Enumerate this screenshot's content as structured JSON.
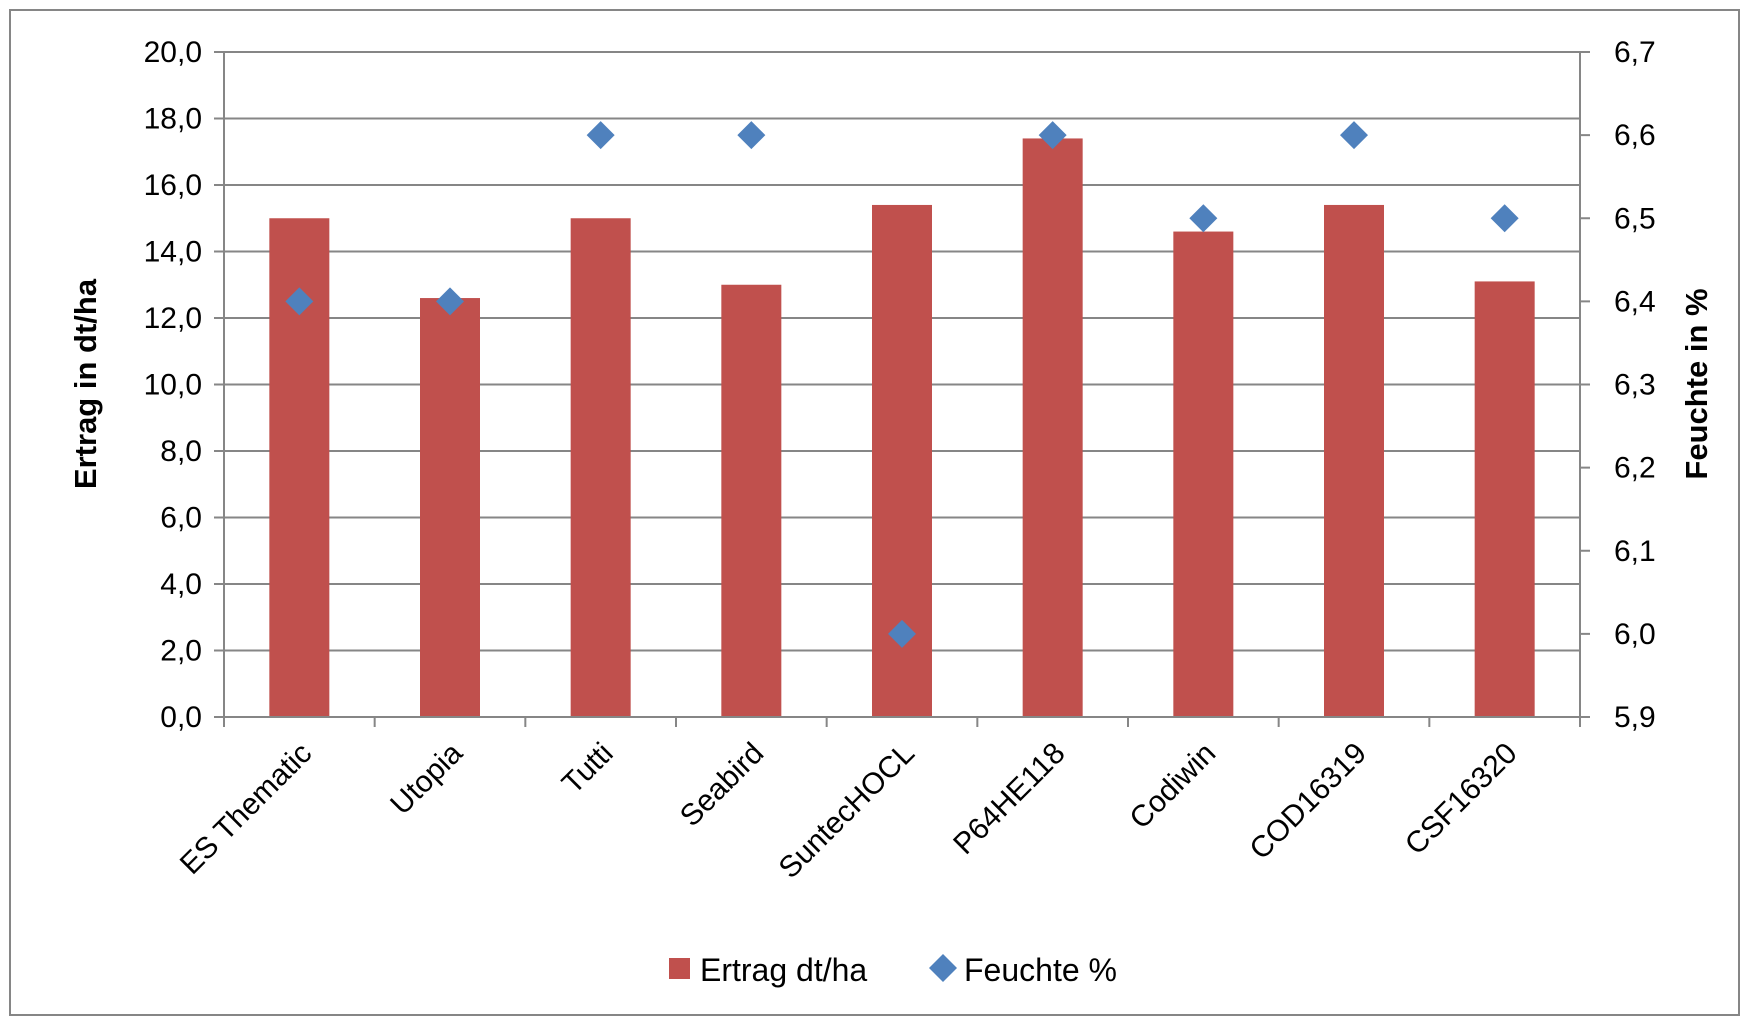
{
  "chart_data": {
    "type": "bar",
    "categories": [
      "ES Thematic",
      "Utopia",
      "Tutti",
      "Seabird",
      "SuntecHOCL",
      "P64HE118",
      "Codiwin",
      "COD16319",
      "CSF16320"
    ],
    "series": [
      {
        "name": "Ertrag dt/ha",
        "type": "bar",
        "axis": "left",
        "color": "#C0504D",
        "values": [
          15.0,
          12.6,
          15.0,
          13.0,
          15.4,
          17.4,
          14.6,
          15.4,
          13.1
        ]
      },
      {
        "name": "Feuchte %",
        "type": "scatter",
        "marker": "diamond",
        "axis": "right",
        "color": "#4F81BD",
        "values": [
          6.4,
          6.4,
          6.6,
          6.6,
          6.0,
          6.6,
          6.5,
          6.6,
          6.5
        ]
      }
    ],
    "ylabel": "Ertrag in dt/ha",
    "y2label": "Feuchte in %",
    "ylim": [
      0,
      20
    ],
    "y2lim": [
      5.9,
      6.7
    ],
    "yticks": [
      "0,0",
      "2,0",
      "4,0",
      "6,0",
      "8,0",
      "10,0",
      "12,0",
      "14,0",
      "16,0",
      "18,0",
      "20,0"
    ],
    "y2ticks": [
      "5,9",
      "6,0",
      "6,1",
      "6,2",
      "6,3",
      "6,4",
      "6,5",
      "6,6",
      "6,7"
    ],
    "grid": true,
    "legend_position": "bottom"
  }
}
